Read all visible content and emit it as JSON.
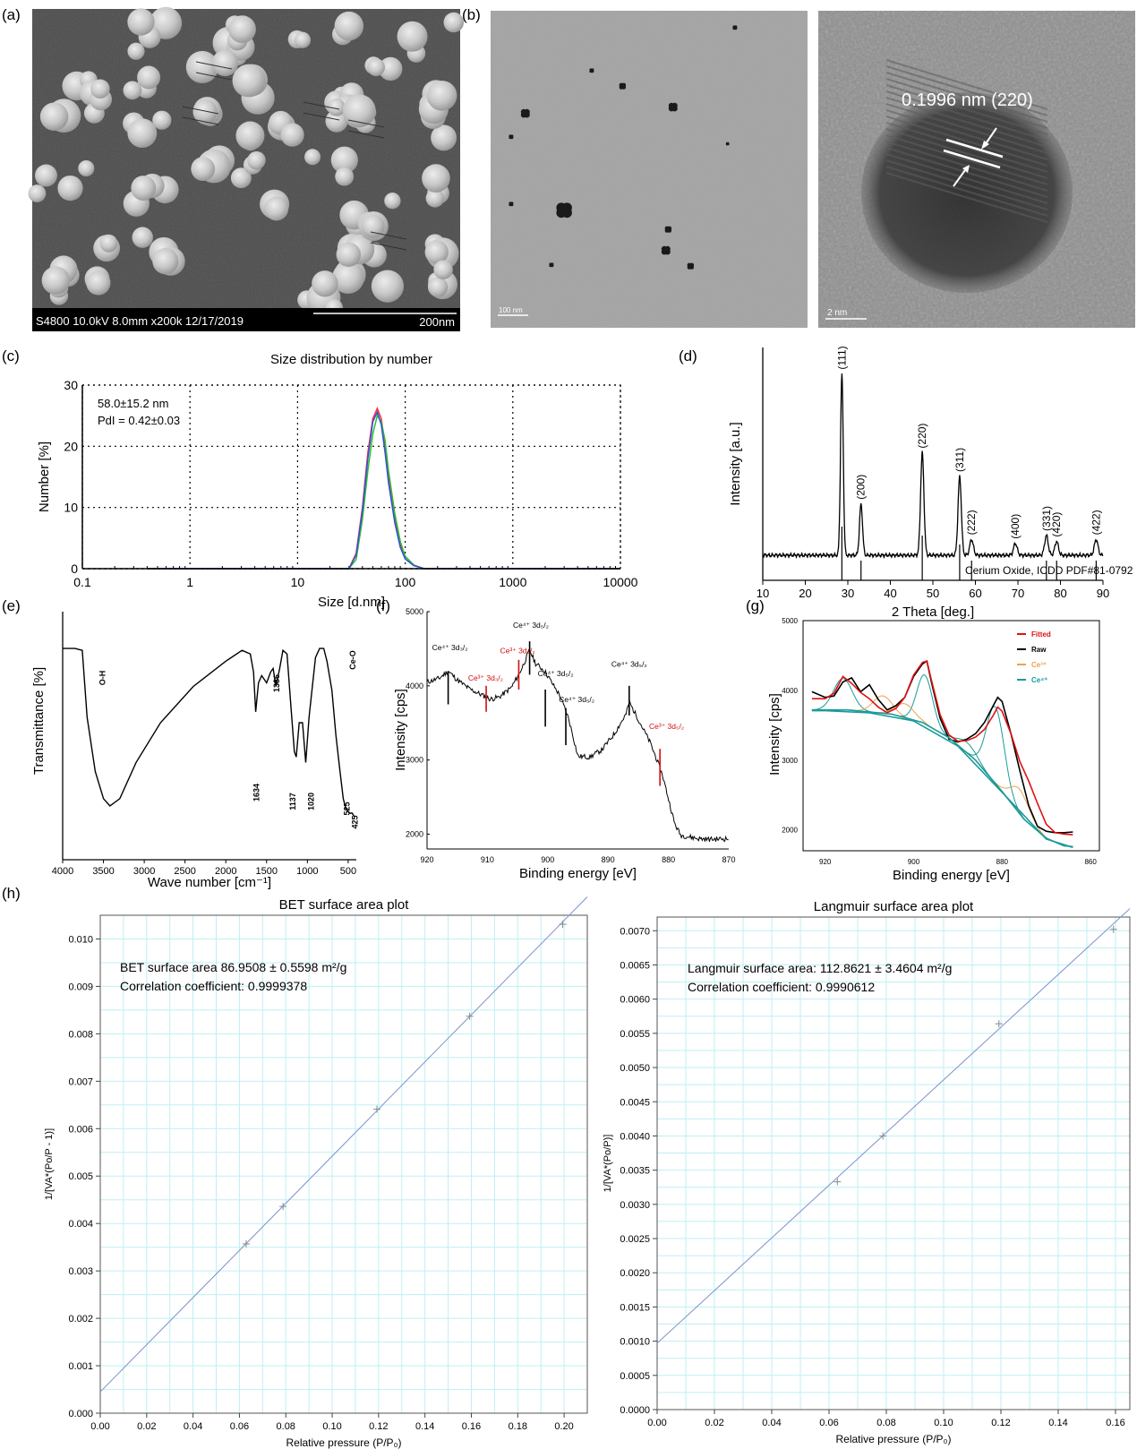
{
  "panels": {
    "a": "(a)",
    "b": "(b)",
    "c": "(c)",
    "d": "(d)",
    "e": "(e)",
    "f": "(f)",
    "g": "(g)",
    "h": "(h)"
  },
  "micrographs": {
    "sem_info": "S4800 10.0kV 8.0mm x200k 12/17/2019",
    "sem_scale": "200nm",
    "tem_scale": "100 nm",
    "hrtem_label": "0.1996 nm (220)",
    "hrtem_scale": "2 nm"
  },
  "chart_data": [
    {
      "id": "dls",
      "type": "line",
      "title": "Size distribution by number",
      "xlabel": "Size [d.nm]",
      "ylabel": "Number [%]",
      "xscale": "log",
      "xlim": [
        0.1,
        10000
      ],
      "ylim": [
        0,
        30
      ],
      "xticks": [
        "0.1",
        "1",
        "10",
        "100",
        "1000",
        "10000"
      ],
      "yticks": [
        "0",
        "10",
        "20",
        "30"
      ],
      "grid": true,
      "annotation_line1": "58.0±15.2 nm",
      "annotation_line2": "PdI = 0.42±0.03",
      "series": [
        {
          "color": "#ff3030",
          "x": [
            0.4,
            30,
            35,
            40,
            45,
            50,
            55,
            60,
            65,
            70,
            80,
            90,
            100,
            120,
            150,
            10000
          ],
          "y": [
            0,
            0,
            2.5,
            10,
            19,
            24.5,
            26.2,
            24.5,
            20,
            15,
            8,
            4,
            2,
            0.6,
            0,
            0
          ]
        },
        {
          "color": "#2ec02e",
          "x": [
            0.4,
            30,
            35,
            40,
            45,
            50,
            55,
            60,
            65,
            70,
            80,
            90,
            100,
            120,
            150,
            10000
          ],
          "y": [
            0,
            0,
            1.5,
            8,
            16,
            22,
            25,
            24,
            21,
            16,
            9,
            4.5,
            2,
            0.6,
            0,
            0
          ]
        },
        {
          "color": "#3050e0",
          "x": [
            0.4,
            30,
            35,
            40,
            45,
            50,
            55,
            60,
            65,
            70,
            80,
            90,
            100,
            120,
            150,
            10000
          ],
          "y": [
            0,
            0,
            2.2,
            9.5,
            18,
            24,
            25.6,
            23.5,
            19,
            14,
            7.5,
            3.5,
            1.6,
            0.5,
            0,
            0
          ]
        }
      ]
    },
    {
      "id": "xrd",
      "type": "line",
      "xlabel": "2 Theta [deg.]",
      "ylabel": "Intensity [a.u.]",
      "xlim": [
        10,
        90
      ],
      "xticks": [
        "10",
        "20",
        "30",
        "40",
        "50",
        "60",
        "70",
        "80",
        "90"
      ],
      "peaks": [
        {
          "x": 28.6,
          "h": 0.92,
          "w": 0.45,
          "label": "(111)"
        },
        {
          "x": 33.1,
          "h": 0.26,
          "w": 0.5,
          "label": "(200)"
        },
        {
          "x": 47.5,
          "h": 0.52,
          "w": 0.55,
          "label": "(220)"
        },
        {
          "x": 56.3,
          "h": 0.4,
          "w": 0.55,
          "label": "(311)"
        },
        {
          "x": 59.1,
          "h": 0.08,
          "w": 0.6,
          "label": "(222)"
        },
        {
          "x": 69.4,
          "h": 0.06,
          "w": 0.6,
          "label": "(400)"
        },
        {
          "x": 76.7,
          "h": 0.1,
          "w": 0.6,
          "label": "(331)"
        },
        {
          "x": 79.1,
          "h": 0.07,
          "w": 0.6,
          "label": "(420)"
        },
        {
          "x": 88.4,
          "h": 0.08,
          "w": 0.6,
          "label": "(422)"
        }
      ],
      "reference_label": "Cerium Oxide, ICDD PDF#81-0792",
      "reference_lines": [
        28.6,
        33.1,
        47.5,
        56.3,
        59.1,
        76.7,
        79.1,
        88.4
      ]
    },
    {
      "id": "ftir",
      "type": "line",
      "xlabel": "Wave number [cm⁻¹]",
      "ylabel": "Transmittance [%]",
      "xlim": [
        4000,
        400
      ],
      "xticks": [
        "4000",
        "3500",
        "3000",
        "2500",
        "2000",
        "1500",
        "1000",
        "500"
      ],
      "x": [
        4000,
        3850,
        3760,
        3700,
        3600,
        3500,
        3420,
        3300,
        3100,
        2800,
        2400,
        2000,
        1800,
        1700,
        1660,
        1634,
        1600,
        1560,
        1500,
        1450,
        1420,
        1386,
        1340,
        1300,
        1250,
        1200,
        1160,
        1137,
        1100,
        1060,
        1020,
        980,
        900,
        850,
        800,
        760,
        700,
        650,
        600,
        560,
        525,
        480,
        450,
        425
      ],
      "y": [
        0.93,
        0.93,
        0.92,
        0.55,
        0.25,
        0.1,
        0.06,
        0.1,
        0.3,
        0.52,
        0.72,
        0.86,
        0.92,
        0.9,
        0.8,
        0.58,
        0.74,
        0.78,
        0.74,
        0.8,
        0.82,
        0.72,
        0.82,
        0.92,
        0.9,
        0.6,
        0.36,
        0.33,
        0.52,
        0.52,
        0.3,
        0.55,
        0.88,
        0.93,
        0.93,
        0.86,
        0.7,
        0.45,
        0.25,
        0.1,
        0.04,
        0.02,
        0.02,
        0.0
      ],
      "labels": [
        {
          "x": 3520,
          "text": "O-H"
        },
        {
          "x": 1634,
          "text": "1634"
        },
        {
          "x": 1386,
          "text": "1386"
        },
        {
          "x": 1137,
          "text": "1137"
        },
        {
          "x": 1020,
          "text": "1020"
        },
        {
          "x": 525,
          "text": "525"
        },
        {
          "x": 425,
          "text": "425"
        },
        {
          "x": 455,
          "text": "Ce-O"
        }
      ]
    },
    {
      "id": "xps",
      "type": "line",
      "xlabel": "Binding energy [eV]",
      "ylabel": "Intensity [cps]",
      "xlim": [
        920,
        870
      ],
      "ylim": [
        1800,
        5000
      ],
      "xticks": [
        "920",
        "910",
        "900",
        "890",
        "880",
        "870"
      ],
      "yticks": [
        "2000",
        "3000",
        "4000",
        "5000"
      ],
      "x": [
        920,
        918,
        916.5,
        915,
        913,
        911,
        909.5,
        908,
        906,
        904.5,
        903,
        902,
        900.5,
        899,
        898,
        896.5,
        895,
        893,
        891,
        889,
        887,
        886.5,
        885,
        883,
        882,
        881,
        880,
        879,
        878,
        877,
        875,
        873,
        870
      ],
      "y": [
        4050,
        4100,
        4200,
        4080,
        3960,
        3880,
        3820,
        3850,
        3980,
        4200,
        4480,
        4300,
        4200,
        4000,
        3870,
        3550,
        3050,
        3040,
        3140,
        3350,
        3620,
        3780,
        3550,
        3230,
        3020,
        2800,
        2480,
        2150,
        1990,
        1970,
        1940,
        1930,
        1940
      ],
      "markers": [
        {
          "x": 916.5,
          "color": "#000000",
          "y1": 3750,
          "y2": 4200
        },
        {
          "x": 910.2,
          "color": "#d01010",
          "y1": 3650,
          "y2": 4000
        },
        {
          "x": 904.8,
          "color": "#d01010",
          "y1": 3950,
          "y2": 4350
        },
        {
          "x": 903.0,
          "color": "#000000",
          "y1": 4150,
          "y2": 4600
        },
        {
          "x": 900.4,
          "color": "#000000",
          "y1": 3450,
          "y2": 3950
        },
        {
          "x": 897.0,
          "color": "#000000",
          "y1": 3200,
          "y2": 3700
        },
        {
          "x": 886.5,
          "color": "#000000",
          "y1": 3600,
          "y2": 4000
        },
        {
          "x": 881.4,
          "color": "#d01010",
          "y1": 2650,
          "y2": 3150
        }
      ],
      "labels": [
        {
          "x": 916.2,
          "y": 4480,
          "text": "Ce⁴⁺ 3d₃/₂",
          "color": "#000000"
        },
        {
          "x": 910.3,
          "y": 4070,
          "text": "Ce³⁺ 3d₃/₂",
          "color": "#d01010"
        },
        {
          "x": 905.0,
          "y": 4440,
          "text": "Ce³⁺ 3d₃/₂",
          "color": "#d01010"
        },
        {
          "x": 902.8,
          "y": 4780,
          "text": "Ce⁴⁺ 3d₅/₂",
          "color": "#000000"
        },
        {
          "x": 898.7,
          "y": 4130,
          "text": "Ce⁴⁺ 3d₅/₂",
          "color": "#000000"
        },
        {
          "x": 895.2,
          "y": 3780,
          "text": "Ce⁴⁺ 3d₅/₂",
          "color": "#000000"
        },
        {
          "x": 886.5,
          "y": 4260,
          "text": "Ce⁴⁺ 3d₅/₂",
          "color": "#000000"
        },
        {
          "x": 880.3,
          "y": 3420,
          "text": "Ce³⁺ 3d₅/₂",
          "color": "#d01010"
        }
      ]
    },
    {
      "id": "xps_fit",
      "type": "line",
      "xlabel": "Binding energy [eV]",
      "ylabel": "Intensity [cps]",
      "xlim": [
        925,
        858
      ],
      "ylim": [
        1700,
        5000
      ],
      "xticks": [
        "920",
        "900",
        "880",
        "860"
      ],
      "yticks": [
        "2000",
        "3000",
        "4000",
        "5000"
      ],
      "legend": {
        "placement": "top-right",
        "items": [
          {
            "name": "Fitted",
            "color": "#e01010"
          },
          {
            "name": "Raw",
            "color": "#000000"
          },
          {
            "name": "Ce³⁺",
            "color": "#f0a050"
          },
          {
            "name": "Ce⁴⁺",
            "color": "#1a9a9a"
          }
        ]
      },
      "series": [
        {
          "name": "Raw",
          "color": "#000000",
          "x": [
            923,
            920,
            918,
            916,
            914,
            912,
            910,
            908,
            906,
            904,
            902,
            900,
            898,
            897,
            896,
            894,
            892,
            890,
            888,
            886,
            884,
            882,
            881,
            880,
            878,
            876,
            874,
            872,
            870,
            868,
            866,
            864
          ],
          "y": [
            3980,
            3900,
            3920,
            4120,
            4180,
            3980,
            4080,
            3870,
            3720,
            3780,
            3900,
            4200,
            4380,
            4420,
            4120,
            3600,
            3300,
            3260,
            3300,
            3380,
            3540,
            3780,
            3900,
            3840,
            3380,
            2850,
            2350,
            2050,
            1980,
            1960,
            1960,
            1970
          ]
        },
        {
          "name": "Fitted",
          "color": "#e01010",
          "x": [
            923,
            920,
            918,
            916,
            914,
            912,
            910,
            908,
            906,
            904,
            902,
            900,
            898,
            897,
            896,
            894,
            892,
            890,
            888,
            886,
            884,
            882,
            881,
            880,
            878,
            876,
            874,
            872,
            870,
            868,
            866,
            864
          ],
          "y": [
            3880,
            3880,
            3960,
            4200,
            4100,
            3970,
            3880,
            3760,
            3680,
            3740,
            3900,
            4220,
            4400,
            4420,
            4150,
            3650,
            3360,
            3270,
            3280,
            3330,
            3440,
            3640,
            3760,
            3700,
            3380,
            2980,
            2700,
            2380,
            2080,
            1960,
            1940,
            1930
          ]
        },
        {
          "name": "Ce⁴⁺ background",
          "color": "#1a9a9a",
          "x": [
            923,
            915,
            905,
            898,
            892,
            886,
            880,
            875,
            870,
            866,
            864
          ],
          "y": [
            3720,
            3720,
            3660,
            3540,
            3320,
            3000,
            2550,
            2150,
            1880,
            1770,
            1760
          ]
        }
      ]
    },
    {
      "id": "bet",
      "type": "scatter",
      "title": "BET surface area plot",
      "xlabel": "Relative pressure (P/P₀)",
      "ylabel": "1/[VA*(Po/P - 1)]",
      "xlim": [
        0,
        0.21
      ],
      "ylim": [
        0,
        0.0105
      ],
      "xticks": [
        "0.00",
        "0.02",
        "0.04",
        "0.06",
        "0.08",
        "0.10",
        "0.12",
        "0.14",
        "0.16",
        "0.18",
        "0.20"
      ],
      "yticks": [
        "0.000",
        "0.001",
        "0.002",
        "0.003",
        "0.004",
        "0.005",
        "0.006",
        "0.007",
        "0.008",
        "0.009",
        "0.010"
      ],
      "annotation_line1": "BET surface area 86.9508 ± 0.5598 m²/g",
      "annotation_line2": "Correlation coefficient: 0.9999378",
      "x": [
        0.0629,
        0.0788,
        0.1193,
        0.1593,
        0.1994
      ],
      "y": [
        0.00357,
        0.00436,
        0.00641,
        0.00837,
        0.01031
      ],
      "fit": {
        "intercept": 0.00045,
        "slope": 0.0497
      },
      "grid": true
    },
    {
      "id": "langmuir",
      "type": "scatter",
      "title": "Langmuir surface area plot",
      "xlabel": "Relative pressure (P/P₀)",
      "ylabel": "1/[VA*(Po/P)]",
      "xlim": [
        0,
        0.165
      ],
      "ylim": [
        0,
        0.0072
      ],
      "xticks": [
        "0.00",
        "0.02",
        "0.04",
        "0.06",
        "0.08",
        "0.10",
        "0.12",
        "0.14",
        "0.16"
      ],
      "yticks": [
        "0.0000",
        "0.0005",
        "0.0010",
        "0.0015",
        "0.0020",
        "0.0025",
        "0.0030",
        "0.0035",
        "0.0040",
        "0.0045",
        "0.0050",
        "0.0055",
        "0.0060",
        "0.0065",
        "0.0070"
      ],
      "annotation_line1": "Langmuir surface area: 112.8621 ± 3.4604 m²/g",
      "annotation_line2": "Correlation coefficient: 0.9990612",
      "x": [
        0.0629,
        0.0788,
        0.1193,
        0.1593
      ],
      "y": [
        0.00333,
        0.004,
        0.00564,
        0.00702
      ],
      "fit": {
        "intercept": 0.00097,
        "slope": 0.0385
      },
      "grid": true
    }
  ]
}
